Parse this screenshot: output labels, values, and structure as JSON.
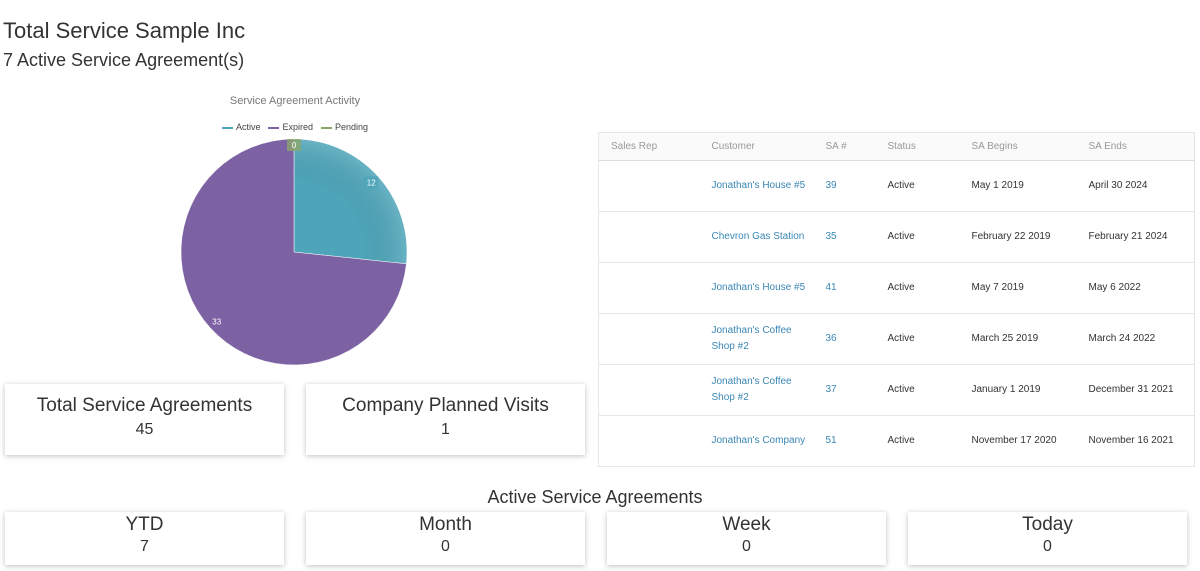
{
  "header": {
    "title": "Total Service Sample Inc",
    "subtitle": "7 Active Service Agreement(s)"
  },
  "chart_data": {
    "type": "pie",
    "title": "Service Agreement Activity",
    "legend_position": "top",
    "slices": [
      {
        "name": "Active",
        "value": 12,
        "color": "#4ea5b9"
      },
      {
        "name": "Expired",
        "value": 33,
        "color": "#7d62a3"
      },
      {
        "name": "Pending",
        "value": 0,
        "color": "#8aa86a"
      }
    ]
  },
  "cards": [
    {
      "label": "Total Service Agreements",
      "value": "45"
    },
    {
      "label": "Company Planned Visits",
      "value": "1"
    }
  ],
  "table": {
    "headers": [
      "Sales Rep",
      "Customer",
      "SA #",
      "Status",
      "SA Begins",
      "SA Ends"
    ],
    "rows": [
      {
        "rep": "",
        "customer": "Jonathan's House #5",
        "sa": "39",
        "status": "Active",
        "begins": "May 1 2019",
        "ends": "April 30 2024"
      },
      {
        "rep": "",
        "customer": "Chevron Gas Station",
        "sa": "35",
        "status": "Active",
        "begins": "February 22 2019",
        "ends": "February 21 2024"
      },
      {
        "rep": "",
        "customer": "Jonathan's House #5",
        "sa": "41",
        "status": "Active",
        "begins": "May 7 2019",
        "ends": "May 6 2022"
      },
      {
        "rep": "",
        "customer": "Jonathan's Coffee Shop #2",
        "sa": "36",
        "status": "Active",
        "begins": "March 25 2019",
        "ends": "March 24 2022"
      },
      {
        "rep": "",
        "customer": "Jonathan's Coffee Shop #2",
        "sa": "37",
        "status": "Active",
        "begins": "January 1 2019",
        "ends": "December 31 2021"
      },
      {
        "rep": "",
        "customer": "Jonathan's Company",
        "sa": "51",
        "status": "Active",
        "begins": "November 17 2020",
        "ends": "November 16 2021"
      }
    ]
  },
  "active_section": {
    "title": "Active Service Agreements",
    "periods": [
      {
        "label": "YTD",
        "value": "7"
      },
      {
        "label": "Month",
        "value": "0"
      },
      {
        "label": "Week",
        "value": "0"
      },
      {
        "label": "Today",
        "value": "0"
      }
    ]
  }
}
